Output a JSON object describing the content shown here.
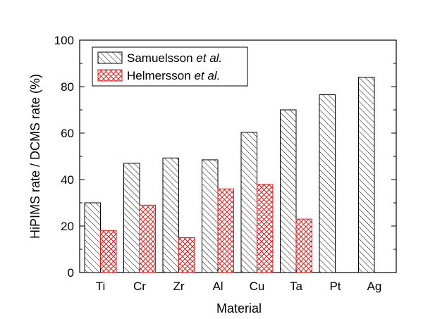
{
  "chart_data": {
    "type": "bar",
    "title": "",
    "xlabel": "Material",
    "ylabel": "HiPIMS rate / DCMS rate (%)",
    "ylim": [
      0,
      100
    ],
    "yticks": [
      "0",
      "20",
      "40",
      "60",
      "80",
      "100"
    ],
    "categories": [
      "Ti",
      "Cr",
      "Zr",
      "Al",
      "Cu",
      "Ta",
      "Pt",
      "Ag"
    ],
    "series": [
      {
        "name": "Samuelsson",
        "suffix": "et al.",
        "pattern": "diagonal-hatch",
        "color": "#000000",
        "values": [
          30,
          47,
          49.3,
          48.5,
          60.3,
          70,
          76.5,
          84
        ]
      },
      {
        "name": "Helmersson",
        "suffix": "et al.",
        "pattern": "crosshatch",
        "color": "#d42020",
        "values": [
          18,
          29,
          15,
          36,
          38,
          23,
          null,
          null
        ]
      }
    ],
    "legend_position": "top-left",
    "grid": false
  }
}
